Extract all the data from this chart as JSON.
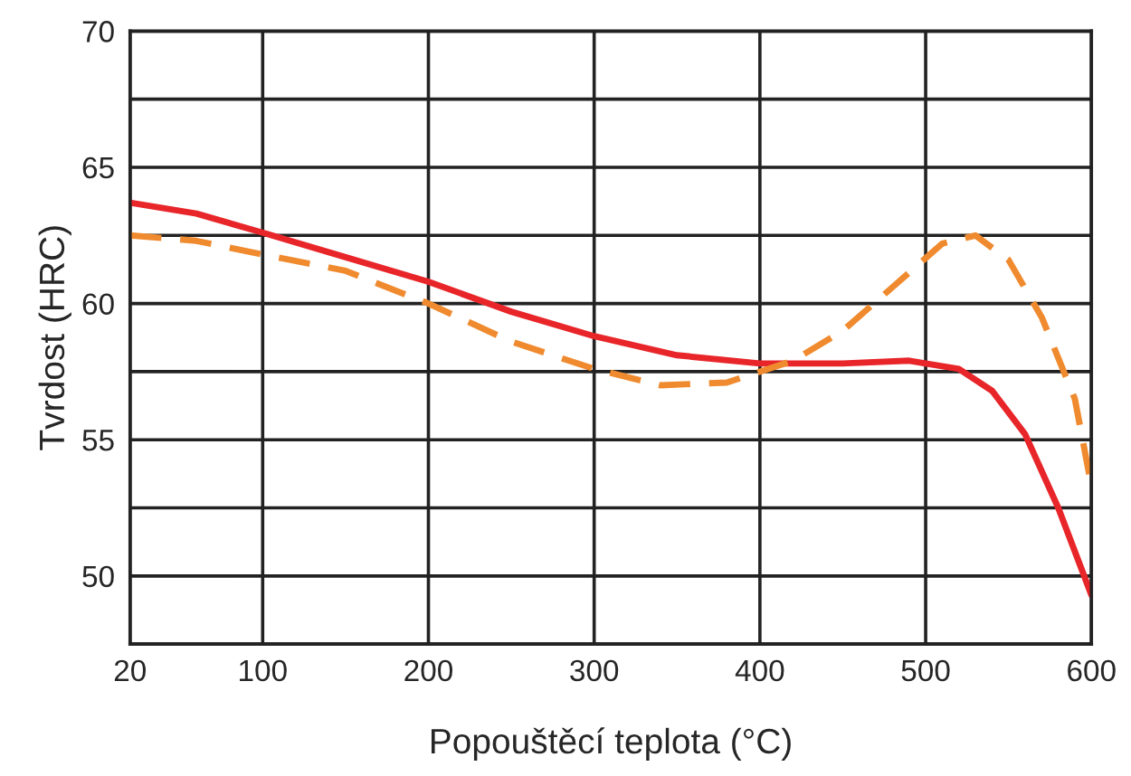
{
  "chart_data": {
    "type": "line",
    "xlabel": "Popouštěcí teplota (°C)",
    "ylabel": "Tvrdost (HRC)",
    "xlim": [
      20,
      600
    ],
    "xticks": [
      20,
      100,
      200,
      300,
      400,
      500,
      600
    ],
    "ylim": [
      47.5,
      70
    ],
    "yticks": [
      {
        "value": 47.5,
        "label": null
      },
      50,
      {
        "value": 52.5,
        "label": null
      },
      55,
      {
        "value": 57.5,
        "label": null
      },
      60,
      {
        "value": 62.5,
        "label": null
      },
      65,
      {
        "value": 67.5,
        "label": null
      },
      70
    ],
    "grid": true,
    "legend": false,
    "series": [
      {
        "color": "#e8262a",
        "line_style": "solid",
        "x": [
          20,
          60,
          100,
          150,
          200,
          250,
          300,
          350,
          400,
          450,
          490,
          520,
          540,
          560,
          580,
          600
        ],
        "values": [
          63.7,
          63.3,
          62.6,
          61.7,
          60.8,
          59.7,
          58.8,
          58.1,
          57.8,
          57.8,
          57.9,
          57.6,
          56.8,
          55.2,
          52.5,
          49.3
        ]
      },
      {
        "color": "#f08a2e",
        "line_style": "dashed",
        "x": [
          20,
          60,
          100,
          150,
          200,
          250,
          300,
          340,
          380,
          420,
          450,
          480,
          510,
          530,
          550,
          570,
          590,
          600
        ],
        "values": [
          62.5,
          62.3,
          61.8,
          61.2,
          60.0,
          58.6,
          57.6,
          57.0,
          57.1,
          57.9,
          59.0,
          60.6,
          62.2,
          62.5,
          61.6,
          59.5,
          56.5,
          53.3
        ]
      }
    ]
  }
}
